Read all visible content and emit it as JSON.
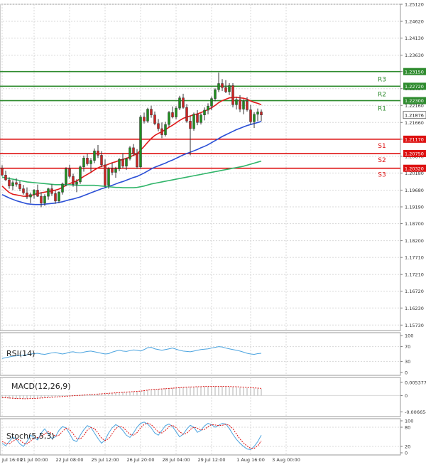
{
  "colors": {
    "bull": "#1e8f1e",
    "bear": "#cc2222",
    "resistance": "#2e8b2e",
    "support": "#dd1111",
    "ma_fast": "#e01a1a",
    "ma_mid": "#2a4fd6",
    "ma_slow": "#31b56a",
    "indicator": "#4aa3df",
    "grid": "#d8d8d8",
    "axis_text": "#333333"
  },
  "chart_data": {
    "type": "candlestick",
    "instrument_hint": "",
    "price_axis": {
      "ylim": [
        1.1557,
        1.2512
      ],
      "tick_labels": [
        "1.25120",
        "1.24620",
        "1.24130",
        "1.23630",
        "1.23150",
        "1.22650",
        "1.22160",
        "1.21660",
        "1.21170",
        "1.20670",
        "1.20180",
        "1.19680",
        "1.19190",
        "1.18700",
        "1.18200",
        "1.17710",
        "1.17210",
        "1.16720",
        "1.16230",
        "1.15730"
      ],
      "tick_values": [
        1.2512,
        1.2462,
        1.2413,
        1.2363,
        1.2315,
        1.2265,
        1.2216,
        1.2166,
        1.2117,
        1.2067,
        1.2018,
        1.1968,
        1.1919,
        1.187,
        1.182,
        1.1771,
        1.1721,
        1.1672,
        1.1623,
        1.1573
      ]
    },
    "time_axis": {
      "labels": [
        "Jul 16:00",
        "21 Jul 00:00",
        "22 Jul 08:00",
        "25 Jul 12:00",
        "26 Jul 20:00",
        "28 Jul 04:00",
        "29 Jul 12:00",
        "1 Aug 16:00",
        "3 Aug 00:00"
      ],
      "label_bar_index": [
        0,
        9,
        19,
        29,
        39,
        49,
        59,
        70,
        80
      ]
    },
    "levels": [
      {
        "name": "R3",
        "value": 1.2315,
        "label": "1.23150",
        "kind": "resistance"
      },
      {
        "name": "R2",
        "value": 1.2272,
        "label": "1.22720",
        "kind": "resistance"
      },
      {
        "name": "R1",
        "value": 1.223,
        "label": "1.22300",
        "kind": "resistance"
      },
      {
        "name": "S1",
        "value": 1.2117,
        "label": "1.21170",
        "kind": "support"
      },
      {
        "name": "S2",
        "value": 1.2075,
        "label": "1.20750",
        "kind": "support"
      },
      {
        "name": "S3",
        "value": 1.2032,
        "label": "1.20320",
        "kind": "support"
      }
    ],
    "current_price": {
      "value": 1.2188,
      "label": "1.21876"
    },
    "candles": [
      [
        1.2033,
        1.2041,
        1.2008,
        1.2012
      ],
      [
        1.2012,
        1.2025,
        1.1995,
        1.1998
      ],
      [
        1.1998,
        1.2006,
        1.1972,
        1.198
      ],
      [
        1.198,
        1.1997,
        1.1968,
        1.199
      ],
      [
        1.199,
        1.2003,
        1.1978,
        1.1985
      ],
      [
        1.1985,
        1.1994,
        1.1965,
        1.1972
      ],
      [
        1.1972,
        1.1983,
        1.1955,
        1.196
      ],
      [
        1.196,
        1.1976,
        1.1942,
        1.1948
      ],
      [
        1.1948,
        1.1961,
        1.193,
        1.1955
      ],
      [
        1.1955,
        1.1971,
        1.1943,
        1.1968
      ],
      [
        1.1968,
        1.1984,
        1.1948,
        1.195
      ],
      [
        1.195,
        1.1962,
        1.1918,
        1.193
      ],
      [
        1.193,
        1.1956,
        1.1922,
        1.195
      ],
      [
        1.195,
        1.1975,
        1.194,
        1.1972
      ],
      [
        1.1972,
        1.1985,
        1.1951,
        1.1958
      ],
      [
        1.1958,
        1.1967,
        1.1928,
        1.1936
      ],
      [
        1.1936,
        1.1965,
        1.193,
        1.1962
      ],
      [
        1.1962,
        1.199,
        1.1955,
        1.1986
      ],
      [
        1.1986,
        1.2035,
        1.1979,
        1.203
      ],
      [
        1.203,
        1.2042,
        1.2002,
        1.2008
      ],
      [
        1.2008,
        1.2016,
        1.1978,
        1.1985
      ],
      [
        1.1985,
        1.2,
        1.1962,
        1.1992
      ],
      [
        1.1992,
        1.204,
        1.1986,
        1.2036
      ],
      [
        1.2036,
        1.2069,
        1.2022,
        1.2062
      ],
      [
        1.2062,
        1.2075,
        1.204,
        1.2045
      ],
      [
        1.2045,
        1.2062,
        1.2022,
        1.2055
      ],
      [
        1.2055,
        1.209,
        1.2047,
        1.2083
      ],
      [
        1.2083,
        1.21,
        1.2062,
        1.207
      ],
      [
        1.207,
        1.2082,
        1.2035,
        1.2042
      ],
      [
        1.2042,
        1.2058,
        1.1975,
        1.1982
      ],
      [
        1.1982,
        1.2035,
        1.1972,
        1.203
      ],
      [
        1.203,
        1.2048,
        1.2012,
        1.202
      ],
      [
        1.202,
        1.2036,
        1.2004,
        1.203
      ],
      [
        1.203,
        1.2062,
        1.2023,
        1.2058
      ],
      [
        1.2058,
        1.2076,
        1.2032,
        1.2038
      ],
      [
        1.2038,
        1.2063,
        1.2027,
        1.206
      ],
      [
        1.206,
        1.2097,
        1.2055,
        1.2092
      ],
      [
        1.2092,
        1.2103,
        1.2068,
        1.2074
      ],
      [
        1.2074,
        1.2088,
        1.203,
        1.2036
      ],
      [
        1.2036,
        1.2188,
        1.203,
        1.2182
      ],
      [
        1.2182,
        1.2195,
        1.2163,
        1.217
      ],
      [
        1.217,
        1.2209,
        1.2165,
        1.2205
      ],
      [
        1.2205,
        1.2215,
        1.218,
        1.2188
      ],
      [
        1.2188,
        1.2198,
        1.2158,
        1.2163
      ],
      [
        1.2163,
        1.2176,
        1.214,
        1.2148
      ],
      [
        1.2148,
        1.2166,
        1.212,
        1.213
      ],
      [
        1.213,
        1.2168,
        1.2125,
        1.216
      ],
      [
        1.216,
        1.22,
        1.2153,
        1.2195
      ],
      [
        1.2195,
        1.2213,
        1.2178,
        1.2182
      ],
      [
        1.2182,
        1.2214,
        1.2175,
        1.2208
      ],
      [
        1.2208,
        1.2244,
        1.2202,
        1.2238
      ],
      [
        1.2238,
        1.225,
        1.2206,
        1.221
      ],
      [
        1.221,
        1.222,
        1.2165,
        1.217
      ],
      [
        1.217,
        1.2186,
        1.207,
        1.2148
      ],
      [
        1.2148,
        1.2195,
        1.2142,
        1.219
      ],
      [
        1.219,
        1.2202,
        1.2158,
        1.2166
      ],
      [
        1.2166,
        1.2193,
        1.216,
        1.2188
      ],
      [
        1.2188,
        1.221,
        1.2172,
        1.2202
      ],
      [
        1.2202,
        1.2222,
        1.219,
        1.2214
      ],
      [
        1.2214,
        1.2242,
        1.2202,
        1.2236
      ],
      [
        1.2236,
        1.2266,
        1.2228,
        1.2262
      ],
      [
        1.2262,
        1.2312,
        1.2255,
        1.228
      ],
      [
        1.228,
        1.2293,
        1.2258,
        1.2268
      ],
      [
        1.2268,
        1.229,
        1.2252,
        1.2256
      ],
      [
        1.2256,
        1.2281,
        1.2246,
        1.2274
      ],
      [
        1.2274,
        1.2281,
        1.221,
        1.2218
      ],
      [
        1.2218,
        1.224,
        1.2204,
        1.2233
      ],
      [
        1.2233,
        1.2246,
        1.2196,
        1.2205
      ],
      [
        1.2205,
        1.2234,
        1.219,
        1.2228
      ],
      [
        1.2228,
        1.224,
        1.2198,
        1.2203
      ],
      [
        1.2203,
        1.2217,
        1.216,
        1.2168
      ],
      [
        1.2168,
        1.2196,
        1.215,
        1.219
      ],
      [
        1.219,
        1.2207,
        1.217,
        1.2197
      ],
      [
        1.2197,
        1.2204,
        1.217,
        1.2188
      ]
    ],
    "moving_averages": [
      {
        "name": "fast",
        "color_key": "ma_fast",
        "values": [
          1.198,
          1.197,
          1.1961,
          1.1956,
          1.1954,
          1.1952,
          1.195,
          1.195,
          1.1952,
          1.1955,
          1.1958,
          1.196,
          1.1962,
          1.1964,
          1.1966,
          1.1968,
          1.1971,
          1.1976,
          1.1982,
          1.1987,
          1.1991,
          1.1995,
          1.2001,
          1.2008,
          1.2014,
          1.202,
          1.2027,
          1.2033,
          1.2038,
          1.204,
          1.2044,
          1.2048,
          1.2051,
          1.2055,
          1.2058,
          1.2061,
          1.2065,
          1.207,
          1.2074,
          1.2085,
          1.2096,
          1.2108,
          1.2119,
          1.2128,
          1.2134,
          1.2139,
          1.2145,
          1.2152,
          1.2158,
          1.2165,
          1.2172,
          1.2178,
          1.2182,
          1.2185,
          1.2189,
          1.2191,
          1.2195,
          1.2199,
          1.2204,
          1.2209,
          1.2216,
          1.2224,
          1.223,
          1.2234,
          1.2238,
          1.2239,
          1.224,
          1.2238,
          1.2237,
          1.2234,
          1.2229,
          1.2225,
          1.2222,
          1.2218
        ]
      },
      {
        "name": "mid",
        "color_key": "ma_mid",
        "values": [
          1.1955,
          1.195,
          1.1945,
          1.1941,
          1.1937,
          1.1934,
          1.1931,
          1.1928,
          1.1927,
          1.1926,
          1.1926,
          1.1926,
          1.1927,
          1.1928,
          1.1929,
          1.193,
          1.1932,
          1.1934,
          1.1937,
          1.194,
          1.1942,
          1.1945,
          1.1948,
          1.1952,
          1.1956,
          1.196,
          1.1964,
          1.1968,
          1.1972,
          1.1975,
          1.1979,
          1.1982,
          1.1986,
          1.199,
          1.1993,
          1.1997,
          1.2001,
          1.2005,
          1.2008,
          1.2013,
          1.2018,
          1.2024,
          1.203,
          1.2035,
          1.2039,
          1.2043,
          1.2047,
          1.2052,
          1.2056,
          1.2061,
          1.2066,
          1.2071,
          1.2075,
          1.2079,
          1.2083,
          1.2087,
          1.2092,
          1.2096,
          1.2101,
          1.2107,
          1.2113,
          1.2119,
          1.2125,
          1.213,
          1.2135,
          1.214,
          1.2145,
          1.2149,
          1.2153,
          1.2157,
          1.216,
          1.2163,
          1.2166,
          1.2169
        ]
      },
      {
        "name": "slow",
        "color_key": "ma_slow",
        "values": [
          1.2006,
          1.2004,
          1.2002,
          1.2,
          1.1998,
          1.1996,
          1.1994,
          1.1992,
          1.1991,
          1.199,
          1.1989,
          1.1988,
          1.1987,
          1.1986,
          1.1985,
          1.1984,
          1.1984,
          1.1984,
          1.1984,
          1.1984,
          1.1983,
          1.1982,
          1.1982,
          1.1982,
          1.1982,
          1.1982,
          1.1982,
          1.1981,
          1.198,
          1.1979,
          1.1978,
          1.1977,
          1.1976,
          1.1976,
          1.1975,
          1.1975,
          1.1975,
          1.1975,
          1.1976,
          1.1978,
          1.198,
          1.1983,
          1.1986,
          1.1988,
          1.199,
          1.1992,
          1.1994,
          1.1996,
          1.1998,
          1.2,
          1.2002,
          1.2004,
          1.2006,
          1.2008,
          1.201,
          1.2012,
          1.2014,
          1.2016,
          1.2018,
          1.202,
          1.2022,
          1.2024,
          1.2026,
          1.2028,
          1.203,
          1.2032,
          1.2034,
          1.2036,
          1.2038,
          1.2041,
          1.2044,
          1.2047,
          1.205,
          1.2053
        ]
      }
    ],
    "indicators": {
      "rsi": {
        "label": "RSI(14)",
        "ticks": [
          "100",
          "70",
          "30",
          "0"
        ],
        "tick_values": [
          100,
          70,
          30,
          0
        ],
        "ylim": [
          0,
          100
        ],
        "values": [
          38,
          40,
          42,
          44,
          45,
          46,
          47,
          48,
          50,
          51,
          52,
          50,
          49,
          51,
          53,
          54,
          52,
          50,
          52,
          55,
          56,
          54,
          53,
          55,
          57,
          58,
          56,
          54,
          52,
          50,
          51,
          55,
          58,
          60,
          58,
          57,
          59,
          61,
          60,
          58,
          62,
          67,
          68,
          64,
          62,
          60,
          62,
          64,
          66,
          63,
          60,
          58,
          57,
          56,
          58,
          60,
          62,
          63,
          64,
          66,
          68,
          70,
          69,
          66,
          64,
          62,
          60,
          58,
          55,
          52,
          50,
          49,
          51,
          52
        ]
      },
      "macd": {
        "label": "MACD(12,26,9)",
        "ticks": [
          "0.005377",
          "0",
          "-0.006654"
        ],
        "tick_values": [
          0.005377,
          0,
          -0.006654
        ],
        "ylim": [
          -0.0074,
          0.0062
        ],
        "values": [
          -0.001,
          -0.0011,
          -0.0012,
          -0.0013,
          -0.0014,
          -0.0014,
          -0.0014,
          -0.0013,
          -0.0012,
          -0.0011,
          -0.001,
          -0.0009,
          -0.0008,
          -0.0007,
          -0.0006,
          -0.0005,
          -0.0004,
          -0.0003,
          -0.0002,
          -0.0001,
          0.0,
          0.0001,
          0.0002,
          0.0003,
          0.0004,
          0.0005,
          0.0006,
          0.0007,
          0.0008,
          0.0009,
          0.0009,
          0.001,
          0.0011,
          0.0012,
          0.0013,
          0.0014,
          0.0015,
          0.0016,
          0.0017,
          0.0019,
          0.0021,
          0.0023,
          0.0025,
          0.0026,
          0.0027,
          0.0028,
          0.0029,
          0.003,
          0.0031,
          0.0032,
          0.0033,
          0.0034,
          0.0035,
          0.0035,
          0.0036,
          0.0036,
          0.0037,
          0.0037,
          0.0037,
          0.0037,
          0.0037,
          0.0037,
          0.0037,
          0.0037,
          0.0036,
          0.0035,
          0.0034,
          0.0033,
          0.0032,
          0.0031,
          0.003,
          0.0029,
          0.0028,
          0.0027
        ],
        "signal": [
          -0.0008,
          -0.0009,
          -0.001,
          -0.0011,
          -0.0012,
          -0.0012,
          -0.0013,
          -0.0013,
          -0.0012,
          -0.0012,
          -0.0011,
          -0.001,
          -0.0009,
          -0.0008,
          -0.0007,
          -0.0006,
          -0.0005,
          -0.0004,
          -0.0003,
          -0.0002,
          -0.0001,
          0.0,
          0.0001,
          0.0002,
          0.0003,
          0.0004,
          0.0005,
          0.0006,
          0.0007,
          0.0008,
          0.0009,
          0.001,
          0.0011,
          0.0012,
          0.0013,
          0.0014,
          0.0015,
          0.0016,
          0.0017,
          0.0018,
          0.002,
          0.0022,
          0.0024,
          0.0025,
          0.0026,
          0.0027,
          0.0028,
          0.0029,
          0.003,
          0.0031,
          0.0032,
          0.0033,
          0.0034,
          0.0035,
          0.0035,
          0.0036,
          0.0036,
          0.0037,
          0.0037,
          0.0037,
          0.0037,
          0.0037,
          0.0037,
          0.0037,
          0.0037,
          0.0036,
          0.0036,
          0.0035,
          0.0034,
          0.0033,
          0.0032,
          0.0031,
          0.003,
          0.0029
        ]
      },
      "stoch": {
        "label": "Stoch(5,5,3)",
        "ticks": [
          "100",
          "80",
          "20",
          "0"
        ],
        "tick_values": [
          100,
          80,
          20,
          0
        ],
        "ylim": [
          0,
          100
        ],
        "k": [
          30,
          22,
          35,
          50,
          42,
          28,
          20,
          35,
          55,
          48,
          40,
          62,
          75,
          60,
          45,
          50,
          70,
          82,
          78,
          60,
          40,
          35,
          55,
          72,
          85,
          80,
          62,
          45,
          30,
          40,
          62,
          78,
          88,
          82,
          70,
          55,
          48,
          62,
          80,
          92,
          96,
          90,
          78,
          62,
          55,
          70,
          85,
          90,
          82,
          66,
          50,
          58,
          74,
          86,
          80,
          64,
          70,
          84,
          92,
          88,
          80,
          86,
          92,
          90,
          76,
          58,
          42,
          30,
          20,
          12,
          10,
          20,
          35,
          55
        ],
        "d": [
          35,
          30,
          28,
          36,
          42,
          40,
          30,
          28,
          36,
          46,
          48,
          50,
          59,
          66,
          60,
          52,
          55,
          67,
          77,
          73,
          59,
          45,
          43,
          54,
          71,
          79,
          76,
          62,
          46,
          38,
          44,
          60,
          76,
          83,
          80,
          69,
          58,
          55,
          63,
          78,
          89,
          93,
          88,
          77,
          65,
          62,
          70,
          82,
          86,
          79,
          66,
          58,
          61,
          73,
          80,
          77,
          71,
          73,
          82,
          88,
          87,
          85,
          86,
          89,
          86,
          75,
          59,
          43,
          31,
          21,
          14,
          14,
          22,
          37
        ]
      }
    }
  }
}
